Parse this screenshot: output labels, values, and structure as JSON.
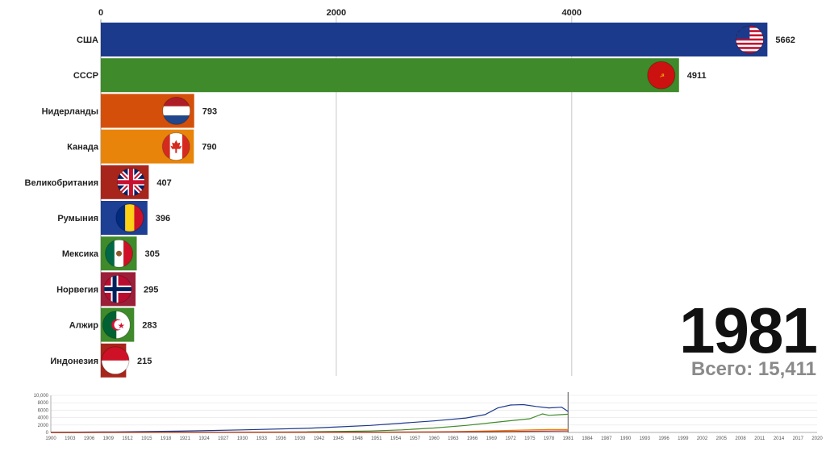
{
  "chart_data": {
    "type": "bar",
    "orientation": "horizontal",
    "title": "",
    "xlim": [
      0,
      6400
    ],
    "x_ticks": [
      0,
      2000,
      4000
    ],
    "x_tick_labels": [
      "0",
      "2000",
      "4000"
    ],
    "grid": true,
    "categories": [
      "США",
      "СССР",
      "Нидерланды",
      "Канада",
      "Великобритания",
      "Румыния",
      "Мексика",
      "Норвегия",
      "Алжир",
      "Индонезия"
    ],
    "values": [
      5662,
      4911,
      793,
      790,
      407,
      396,
      305,
      295,
      283,
      215
    ],
    "value_labels": [
      "5662",
      "4911",
      "793",
      "790",
      "407",
      "396",
      "305",
      "295",
      "283",
      "215"
    ],
    "colors": [
      "#1c3a8c",
      "#3f8a2a",
      "#d4500a",
      "#e8840a",
      "#a8251b",
      "#1d3f94",
      "#3f8a2a",
      "#9c1f3a",
      "#3f8a2a",
      "#a8251b"
    ],
    "flag_icons": [
      "us-flag-icon",
      "ussr-flag-icon",
      "netherlands-flag-icon",
      "canada-flag-icon",
      "uk-flag-icon",
      "romania-flag-icon",
      "mexico-flag-icon",
      "norway-flag-icon",
      "algeria-flag-icon",
      "indonesia-flag-icon"
    ],
    "year": "1981",
    "total_text": "Всего: 15,411",
    "timeline": {
      "y_ticks": [
        "10,000",
        "8000",
        "6000",
        "4000",
        "2000",
        "0"
      ],
      "x_ticks": [
        "1900",
        "1903",
        "1906",
        "1909",
        "1912",
        "1915",
        "1918",
        "1921",
        "1924",
        "1927",
        "1930",
        "1933",
        "1936",
        "1939",
        "1942",
        "1945",
        "1948",
        "1951",
        "1954",
        "1957",
        "1960",
        "1963",
        "1966",
        "1969",
        "1972",
        "1975",
        "1978",
        "1981",
        "1984",
        "1987",
        "1990",
        "1993",
        "1996",
        "1999",
        "2002",
        "2005",
        "2008",
        "2011",
        "2014",
        "2017",
        "2020"
      ],
      "x_range": [
        1900,
        2020
      ],
      "y_range": [
        0,
        10000
      ],
      "current_year": 1981,
      "series": [
        {
          "color": "#1c3a8c",
          "points": [
            [
              1900,
              50
            ],
            [
              1910,
              150
            ],
            [
              1920,
              350
            ],
            [
              1930,
              700
            ],
            [
              1940,
              1100
            ],
            [
              1945,
              1500
            ],
            [
              1950,
              1900
            ],
            [
              1955,
              2500
            ],
            [
              1960,
              3100
            ],
            [
              1965,
              3900
            ],
            [
              1968,
              4800
            ],
            [
              1970,
              6600
            ],
            [
              1972,
              7400
            ],
            [
              1974,
              7500
            ],
            [
              1976,
              7000
            ],
            [
              1978,
              6600
            ],
            [
              1980,
              6800
            ],
            [
              1981,
              5662
            ]
          ]
        },
        {
          "color": "#3f8a2a",
          "points": [
            [
              1900,
              0
            ],
            [
              1925,
              50
            ],
            [
              1940,
              150
            ],
            [
              1950,
              400
            ],
            [
              1955,
              700
            ],
            [
              1960,
              1200
            ],
            [
              1965,
              1900
            ],
            [
              1970,
              2800
            ],
            [
              1975,
              3700
            ],
            [
              1977,
              5000
            ],
            [
              1978,
              4600
            ],
            [
              1980,
              4800
            ],
            [
              1981,
              4911
            ]
          ]
        },
        {
          "color": "#e8840a",
          "points": [
            [
              1900,
              0
            ],
            [
              1950,
              50
            ],
            [
              1960,
              100
            ],
            [
              1970,
              450
            ],
            [
              1975,
              700
            ],
            [
              1978,
              780
            ],
            [
              1981,
              790
            ]
          ]
        },
        {
          "color": "#a8251b",
          "points": [
            [
              1900,
              0
            ],
            [
              1950,
              80
            ],
            [
              1965,
              180
            ],
            [
              1975,
              320
            ],
            [
              1981,
              407
            ]
          ]
        }
      ]
    }
  }
}
